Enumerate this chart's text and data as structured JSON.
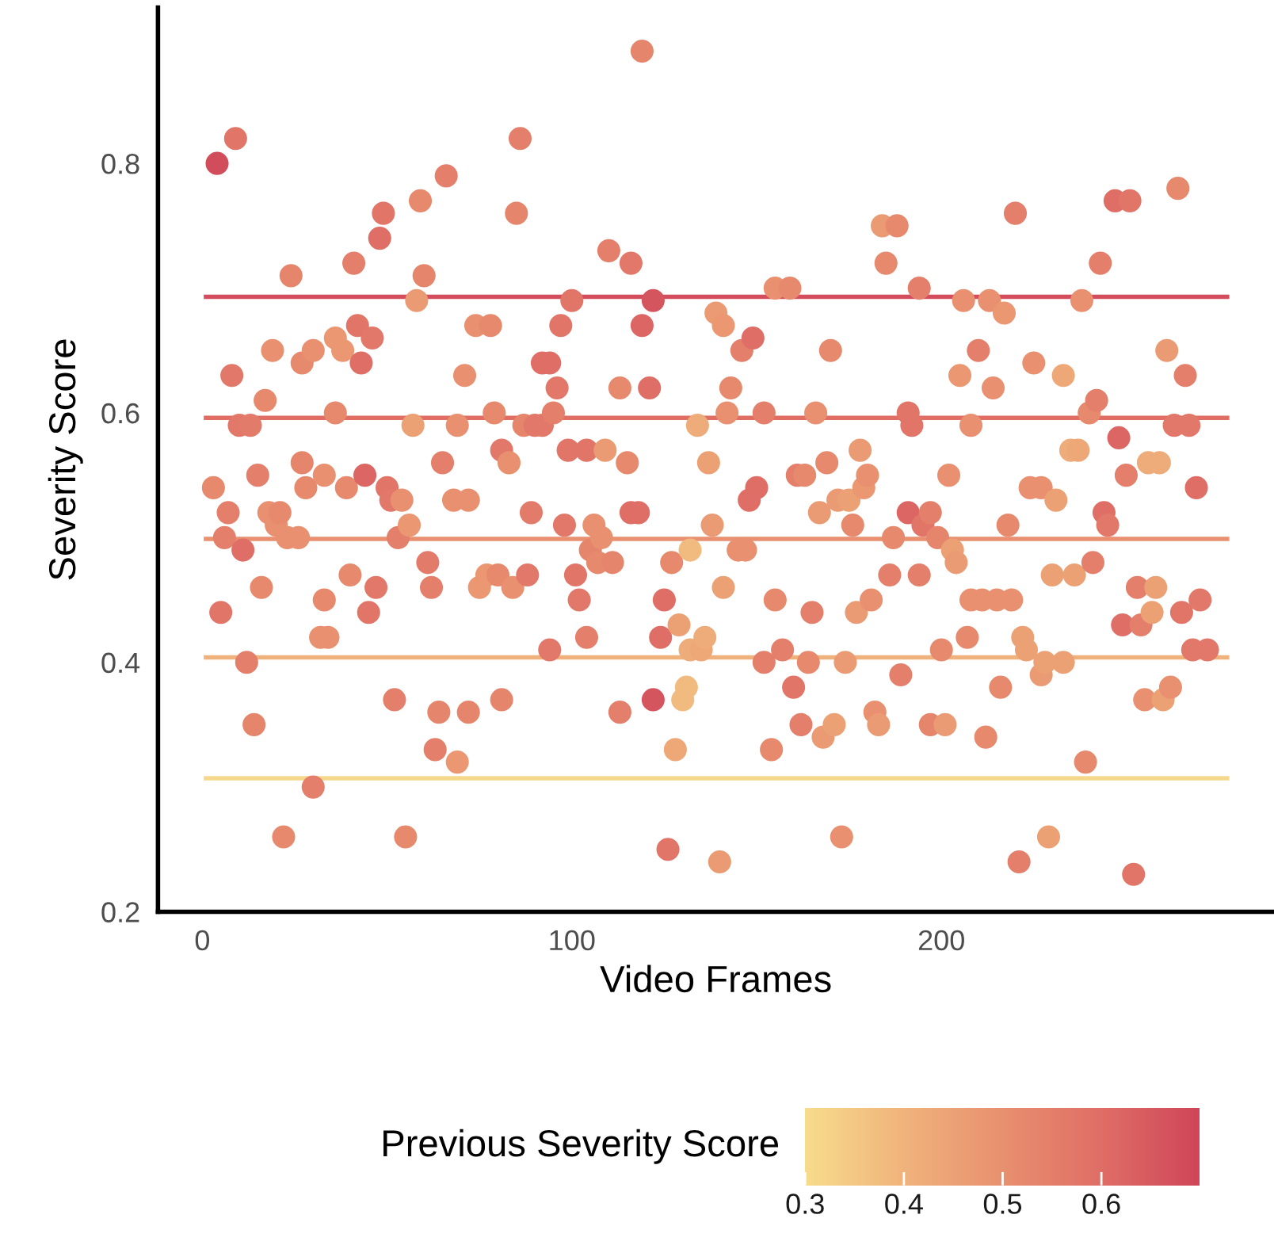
{
  "chart_data": {
    "type": "scatter",
    "xlabel": "Video Frames",
    "ylabel": "Severity Score",
    "clabel": "Previous Severity Score",
    "xlim": [
      -12,
      290
    ],
    "ylim": [
      0.2,
      0.925
    ],
    "xticks": [
      0,
      100,
      200
    ],
    "yticks": [
      0.2,
      0.4,
      0.6,
      0.8
    ],
    "clim": [
      0.3,
      0.7
    ],
    "cticks": [
      0.3,
      0.4,
      0.5,
      0.6
    ],
    "grid": false,
    "legend": false,
    "marker": "circle",
    "ref_lines": [
      {
        "axis": "y",
        "value": 0.693,
        "label": null,
        "color": "#d44d5c"
      },
      {
        "axis": "y",
        "value": 0.596,
        "label": null,
        "color": "#e06e62"
      },
      {
        "axis": "y",
        "value": 0.499,
        "label": null,
        "color": "#e99070"
      },
      {
        "axis": "y",
        "value": 0.404,
        "label": null,
        "color": "#f0b27c"
      },
      {
        "axis": "y",
        "value": 0.307,
        "label": null,
        "color": "#f6d88c"
      }
    ],
    "x": [
      3,
      4,
      9,
      5,
      6,
      7,
      8,
      10,
      13,
      11,
      12,
      14,
      15,
      16,
      17,
      18,
      19,
      20,
      21,
      22,
      23,
      24,
      26,
      27,
      27,
      28,
      30,
      30,
      32,
      33,
      33,
      34,
      36,
      36,
      38,
      39,
      40,
      41,
      42,
      43,
      44,
      45,
      46,
      47,
      48,
      49,
      50,
      51,
      52,
      53,
      54,
      55,
      56,
      57,
      58,
      59,
      60,
      61,
      62,
      63,
      64,
      65,
      66,
      68,
      69,
      69,
      71,
      72,
      72,
      74,
      75,
      77,
      78,
      79,
      80,
      81,
      81,
      83,
      84,
      85,
      86,
      87,
      88,
      89,
      90,
      92,
      92,
      94,
      94,
      95,
      96,
      97,
      98,
      99,
      100,
      101,
      102,
      104,
      104,
      105,
      106,
      107,
      108,
      109,
      110,
      111,
      113,
      113,
      115,
      116,
      116,
      118,
      119,
      119,
      121,
      122,
      122,
      124,
      125,
      126,
      127,
      128,
      129,
      130,
      131,
      132,
      132,
      134,
      135,
      136,
      137,
      138,
      139,
      140,
      141,
      141,
      142,
      143,
      145,
      146,
      147,
      148,
      149,
      150,
      152,
      152,
      154,
      155,
      155,
      157,
      159,
      160,
      161,
      162,
      163,
      164,
      165,
      166,
      167,
      168,
      169,
      170,
      171,
      172,
      173,
      174,
      175,
      176,
      177,
      178,
      179,
      180,
      181,
      182,
      183,
      184,
      185,
      186,
      187,
      188,
      189,
      191,
      191,
      192,
      194,
      194,
      195,
      197,
      197,
      199,
      200,
      201,
      202,
      203,
      204,
      205,
      206,
      207,
      208,
      208,
      210,
      211,
      212,
      213,
      214,
      215,
      216,
      217,
      218,
      219,
      220,
      221,
      222,
      223,
      224,
      225,
      227,
      227,
      228,
      229,
      230,
      231,
      233,
      233,
      235,
      236,
      237,
      238,
      239,
      240,
      241,
      242,
      243,
      244,
      245,
      247,
      248,
      249,
      250,
      251,
      252,
      253,
      254,
      255,
      256,
      257,
      258,
      259,
      260,
      261,
      262,
      263,
      264,
      265,
      266,
      267,
      268,
      269,
      270,
      272
    ],
    "values": [
      0.54,
      0.8,
      0.82,
      0.44,
      0.5,
      0.52,
      0.63,
      0.59,
      0.59,
      0.49,
      0.4,
      0.35,
      0.55,
      0.46,
      0.61,
      0.52,
      0.65,
      0.51,
      0.52,
      0.26,
      0.5,
      0.71,
      0.5,
      0.56,
      0.64,
      0.54,
      0.65,
      0.3,
      0.42,
      0.55,
      0.45,
      0.42,
      0.6,
      0.66,
      0.65,
      0.54,
      0.47,
      0.72,
      0.67,
      0.64,
      0.55,
      0.44,
      0.66,
      0.46,
      0.74,
      0.76,
      0.54,
      0.53,
      0.37,
      0.5,
      0.53,
      0.26,
      0.51,
      0.59,
      0.69,
      0.77,
      0.71,
      0.48,
      0.46,
      0.33,
      0.36,
      0.56,
      0.79,
      0.53,
      0.59,
      0.32,
      0.63,
      0.53,
      0.36,
      0.67,
      0.46,
      0.47,
      0.67,
      0.6,
      0.47,
      0.57,
      0.37,
      0.56,
      0.46,
      0.76,
      0.82,
      0.59,
      0.47,
      0.52,
      0.59,
      0.59,
      0.64,
      0.64,
      0.41,
      0.6,
      0.62,
      0.67,
      0.51,
      0.57,
      0.69,
      0.47,
      0.45,
      0.57,
      0.42,
      0.49,
      0.51,
      0.48,
      0.5,
      0.57,
      0.73,
      0.48,
      0.62,
      0.36,
      0.56,
      0.72,
      0.52,
      0.52,
      0.89,
      0.67,
      0.62,
      0.69,
      0.37,
      0.42,
      0.45,
      0.25,
      0.48,
      0.33,
      0.43,
      0.37,
      0.38,
      0.49,
      0.41,
      0.59,
      0.41,
      0.42,
      0.56,
      0.51,
      0.68,
      0.24,
      0.67,
      0.46,
      0.6,
      0.62,
      0.49,
      0.65,
      0.49,
      0.53,
      0.66,
      0.54,
      0.4,
      0.6,
      0.33,
      0.45,
      0.7,
      0.41,
      0.7,
      0.38,
      0.55,
      0.35,
      0.55,
      0.4,
      0.44,
      0.6,
      0.52,
      0.34,
      0.56,
      0.65,
      0.35,
      0.53,
      0.26,
      0.4,
      0.53,
      0.51,
      0.44,
      0.57,
      0.54,
      0.55,
      0.45,
      0.36,
      0.35,
      0.75,
      0.72,
      0.47,
      0.5,
      0.75,
      0.39,
      0.6,
      0.52,
      0.59,
      0.47,
      0.7,
      0.51,
      0.35,
      0.52,
      0.5,
      0.41,
      0.35,
      0.55,
      0.49,
      0.48,
      0.63,
      0.69,
      0.42,
      0.59,
      0.45,
      0.65,
      0.45,
      0.34,
      0.69,
      0.62,
      0.45,
      0.38,
      0.68,
      0.51,
      0.45,
      0.76,
      0.24,
      0.42,
      0.41,
      0.54,
      0.64,
      0.54,
      0.39,
      0.4,
      0.26,
      0.47,
      0.53,
      0.4,
      0.63,
      0.57,
      0.47,
      0.57,
      0.69,
      0.32,
      0.6,
      0.48,
      0.61,
      0.72,
      0.52,
      0.51,
      0.77,
      0.58,
      0.43,
      0.55,
      0.77,
      0.23,
      0.46,
      0.43,
      0.37,
      0.56,
      0.44,
      0.46,
      0.56,
      0.37,
      0.65,
      0.38,
      0.59,
      0.78,
      0.44,
      0.63,
      0.59,
      0.41,
      0.54,
      0.45,
      0.41
    ],
    "cvalues": [
      0.52,
      0.68,
      0.58,
      0.58,
      0.55,
      0.55,
      0.57,
      0.57,
      0.56,
      0.6,
      0.55,
      0.53,
      0.55,
      0.52,
      0.52,
      0.5,
      0.5,
      0.5,
      0.52,
      0.52,
      0.5,
      0.53,
      0.5,
      0.53,
      0.52,
      0.52,
      0.5,
      0.55,
      0.5,
      0.5,
      0.52,
      0.5,
      0.52,
      0.48,
      0.48,
      0.52,
      0.52,
      0.55,
      0.58,
      0.6,
      0.62,
      0.58,
      0.57,
      0.57,
      0.6,
      0.58,
      0.58,
      0.57,
      0.55,
      0.55,
      0.5,
      0.52,
      0.48,
      0.45,
      0.47,
      0.52,
      0.53,
      0.56,
      0.55,
      0.55,
      0.53,
      0.55,
      0.55,
      0.5,
      0.5,
      0.48,
      0.5,
      0.5,
      0.53,
      0.5,
      0.48,
      0.48,
      0.52,
      0.52,
      0.52,
      0.57,
      0.53,
      0.5,
      0.5,
      0.53,
      0.55,
      0.53,
      0.57,
      0.56,
      0.57,
      0.57,
      0.6,
      0.6,
      0.57,
      0.55,
      0.57,
      0.58,
      0.57,
      0.58,
      0.58,
      0.58,
      0.57,
      0.58,
      0.55,
      0.53,
      0.5,
      0.52,
      0.5,
      0.47,
      0.55,
      0.53,
      0.52,
      0.55,
      0.52,
      0.57,
      0.6,
      0.6,
      0.53,
      0.62,
      0.6,
      0.66,
      0.66,
      0.6,
      0.6,
      0.58,
      0.52,
      0.43,
      0.45,
      0.38,
      0.38,
      0.38,
      0.42,
      0.42,
      0.43,
      0.42,
      0.45,
      0.47,
      0.47,
      0.47,
      0.48,
      0.45,
      0.5,
      0.52,
      0.5,
      0.55,
      0.5,
      0.6,
      0.6,
      0.6,
      0.55,
      0.55,
      0.52,
      0.52,
      0.5,
      0.55,
      0.52,
      0.58,
      0.55,
      0.55,
      0.52,
      0.52,
      0.55,
      0.5,
      0.47,
      0.47,
      0.52,
      0.52,
      0.45,
      0.47,
      0.5,
      0.47,
      0.45,
      0.52,
      0.47,
      0.47,
      0.48,
      0.5,
      0.5,
      0.5,
      0.47,
      0.47,
      0.52,
      0.55,
      0.52,
      0.52,
      0.55,
      0.58,
      0.62,
      0.58,
      0.55,
      0.55,
      0.58,
      0.53,
      0.55,
      0.53,
      0.52,
      0.47,
      0.5,
      0.45,
      0.47,
      0.48,
      0.5,
      0.52,
      0.5,
      0.5,
      0.55,
      0.5,
      0.52,
      0.5,
      0.5,
      0.5,
      0.52,
      0.48,
      0.52,
      0.5,
      0.55,
      0.55,
      0.45,
      0.45,
      0.5,
      0.5,
      0.5,
      0.47,
      0.45,
      0.45,
      0.45,
      0.45,
      0.45,
      0.43,
      0.42,
      0.45,
      0.43,
      0.5,
      0.52,
      0.52,
      0.55,
      0.55,
      0.55,
      0.6,
      0.57,
      0.6,
      0.62,
      0.6,
      0.55,
      0.58,
      0.58,
      0.55,
      0.55,
      0.5,
      0.42,
      0.45,
      0.45,
      0.42,
      0.45,
      0.47,
      0.5,
      0.57,
      0.52,
      0.58,
      0.55,
      0.57,
      0.57,
      0.6,
      0.57,
      0.57
    ]
  }
}
